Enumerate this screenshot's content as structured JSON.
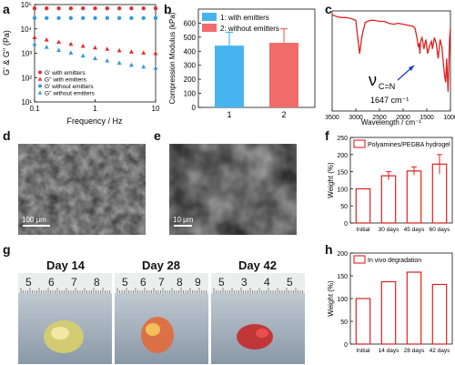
{
  "panels": {
    "a": {
      "label": "a"
    },
    "b": {
      "label": "b"
    },
    "c": {
      "label": "c"
    },
    "d": {
      "label": "d",
      "scalebar": "100 μm"
    },
    "e": {
      "label": "e",
      "scalebar": "10 μm"
    },
    "f": {
      "label": "f"
    },
    "g": {
      "label": "g",
      "days": [
        "Day 14",
        "Day 28",
        "Day 42"
      ],
      "ruler_numbers": [
        [
          "5",
          "6",
          "7",
          "8"
        ],
        [
          "5",
          "6",
          "7",
          "8",
          "9"
        ],
        [
          "5",
          "3",
          "4",
          "5"
        ]
      ]
    },
    "h": {
      "label": "h"
    }
  },
  "chart_data": [
    {
      "id": "a",
      "type": "scatter",
      "xlabel": "Frequency / Hz",
      "ylabel": "G' & G'' (Pa)",
      "x_scale": "log",
      "y_scale": "log",
      "xlim": [
        0.1,
        10
      ],
      "ylim": [
        10,
        100000
      ],
      "x_ticks": [
        "0.1",
        "1",
        "10"
      ],
      "y_ticks": [
        "10¹",
        "10²",
        "10³",
        "10⁴",
        "10⁵"
      ],
      "x": [
        0.1,
        0.158,
        0.251,
        0.398,
        0.631,
        1,
        1.585,
        2.512,
        3.981,
        6.31,
        10
      ],
      "series": [
        {
          "name": "G' with emitters",
          "marker": "circle",
          "color": "#e03030",
          "values": [
            70000,
            70000,
            70000,
            70000,
            70000,
            70000,
            70000,
            70000,
            70000,
            70000,
            70000
          ]
        },
        {
          "name": "G'' with emitters",
          "marker": "triangle",
          "color": "#e03030",
          "values": [
            4500,
            3600,
            2900,
            2400,
            2000,
            1700,
            1500,
            1300,
            1150,
            1050,
            1000
          ]
        },
        {
          "name": "G' without emitters",
          "marker": "circle",
          "color": "#3a9ad9",
          "values": [
            28000,
            28000,
            28000,
            28000,
            28000,
            28000,
            28000,
            28000,
            28000,
            28000,
            28000
          ]
        },
        {
          "name": "G'' without emitters",
          "marker": "triangle",
          "color": "#3a9ad9",
          "values": [
            2400,
            1800,
            1350,
            1050,
            800,
            620,
            500,
            400,
            330,
            280,
            250
          ]
        }
      ]
    },
    {
      "id": "b",
      "type": "bar",
      "ylabel": "Compression Modulus (kPa)",
      "categories": [
        "1",
        "2"
      ],
      "values": [
        440,
        460
      ],
      "errors": [
        95,
        100
      ],
      "colors": [
        "#47b4f0",
        "#f26b6b"
      ],
      "legend": [
        "1: with emitters",
        "2: without emitters"
      ],
      "ylim": [
        0,
        700
      ],
      "y_ticks": [
        "0",
        "100",
        "200",
        "300",
        "400",
        "500",
        "600"
      ]
    },
    {
      "id": "c",
      "type": "line",
      "xlabel": "Wavelength / cm⁻¹",
      "x_ticks": [
        "3500",
        "3000",
        "2500",
        "2000",
        "1500",
        "1000"
      ],
      "xlim": [
        3500,
        1000
      ],
      "color": "#e02020",
      "x": [
        3500,
        3450,
        3400,
        3300,
        3200,
        3100,
        3000,
        2960,
        2920,
        2880,
        2850,
        2800,
        2700,
        2600,
        2500,
        2400,
        2300,
        2200,
        2100,
        2000,
        1900,
        1800,
        1750,
        1700,
        1680,
        1660,
        1647,
        1630,
        1600,
        1560,
        1520,
        1480,
        1450,
        1400,
        1380,
        1340,
        1300,
        1260,
        1220,
        1180,
        1150,
        1120,
        1100,
        1080,
        1050,
        1020,
        1000
      ],
      "values": [
        0.96,
        0.95,
        0.94,
        0.93,
        0.93,
        0.92,
        0.9,
        0.72,
        0.55,
        0.7,
        0.78,
        0.88,
        0.9,
        0.9,
        0.89,
        0.89,
        0.87,
        0.86,
        0.87,
        0.86,
        0.85,
        0.84,
        0.82,
        0.7,
        0.62,
        0.66,
        0.55,
        0.68,
        0.72,
        0.6,
        0.7,
        0.55,
        0.62,
        0.68,
        0.6,
        0.72,
        0.66,
        0.5,
        0.7,
        0.62,
        0.45,
        0.3,
        0.25,
        0.5,
        0.15,
        0.7,
        0.82
      ],
      "annotation": {
        "symbol": "ν",
        "subscript": "C=N",
        "value": "1647 cm⁻¹"
      }
    },
    {
      "id": "f",
      "type": "bar",
      "ylabel": "Weight (%)",
      "legend": [
        "Polyamines/PEGBA hydrogel"
      ],
      "categories": [
        "Initial",
        "30 days",
        "45 days",
        "60 days"
      ],
      "values": [
        100,
        138,
        152,
        172
      ],
      "errors": [
        0,
        12,
        12,
        28
      ],
      "ylim": [
        0,
        250
      ],
      "y_ticks": [
        "0",
        "50",
        "100",
        "150",
        "200",
        "250"
      ],
      "color": "#e02020"
    },
    {
      "id": "h",
      "type": "bar",
      "ylabel": "Weight (%)",
      "legend": [
        "In vivo degradation"
      ],
      "categories": [
        "Initial",
        "14 days",
        "28 days",
        "42 days"
      ],
      "values": [
        100,
        137,
        158,
        131
      ],
      "ylim": [
        0,
        200
      ],
      "y_ticks": [
        "0",
        "50",
        "100",
        "150",
        "200"
      ],
      "color": "#e02020"
    }
  ]
}
